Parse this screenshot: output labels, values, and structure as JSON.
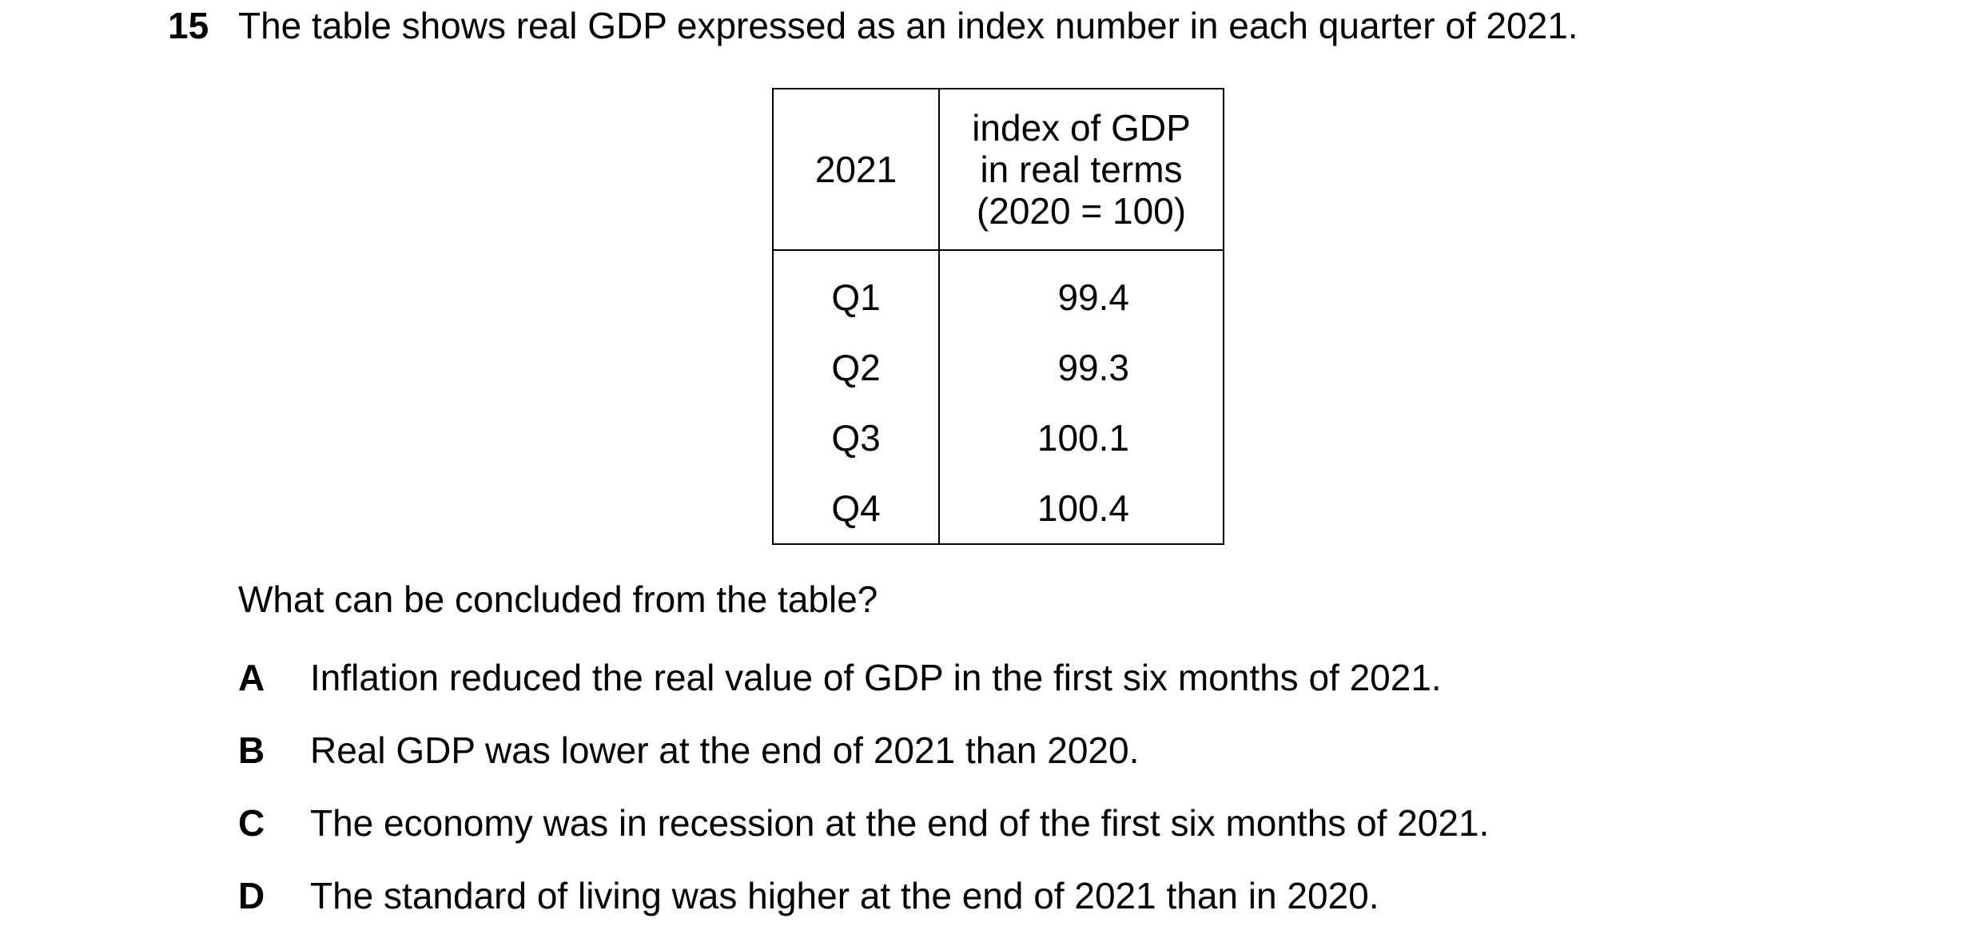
{
  "question": {
    "number": "15",
    "stem": "The table shows real GDP expressed as an index number in each quarter of 2021.",
    "prompt": "What can be concluded from the table?"
  },
  "table": {
    "headers": {
      "year": "2021",
      "index_line1": "index of GDP",
      "index_line2": "in real terms",
      "index_line3": "(2020 = 100)"
    },
    "rows": [
      {
        "quarter": "Q1",
        "value": "99.4"
      },
      {
        "quarter": "Q2",
        "value": "99.3"
      },
      {
        "quarter": "Q3",
        "value": "100.1"
      },
      {
        "quarter": "Q4",
        "value": "100.4"
      }
    ]
  },
  "options": [
    {
      "letter": "A",
      "text": "Inflation reduced the real value of GDP in the first six months of 2021."
    },
    {
      "letter": "B",
      "text": "Real GDP was lower at the end of 2021 than 2020."
    },
    {
      "letter": "C",
      "text": "The economy was in recession at the end of the first six months of 2021."
    },
    {
      "letter": "D",
      "text": "The standard of living was higher at the end of 2021 than in 2020."
    }
  ]
}
